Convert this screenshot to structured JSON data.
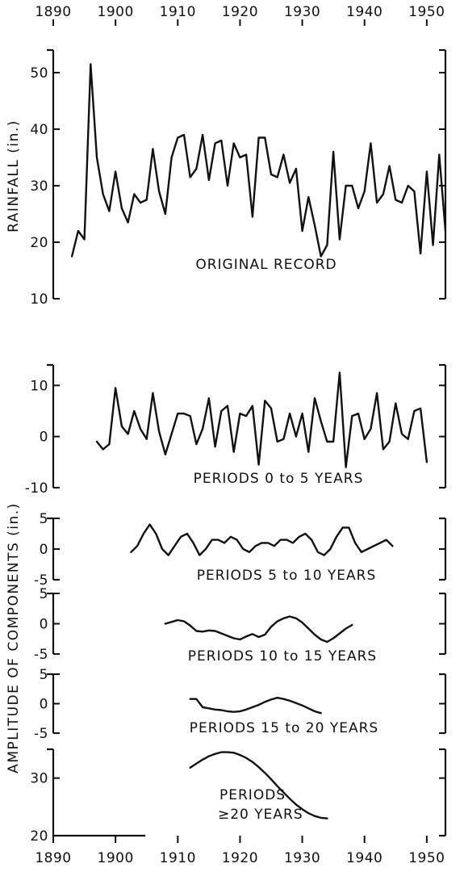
{
  "chart_data": {
    "type": "line",
    "x_ticks": [
      "1890",
      "1900",
      "1910",
      "1920",
      "1930",
      "1940",
      "1950"
    ],
    "x_ticks_top": [
      "1890",
      "1900",
      "1910",
      "1920",
      "1930",
      "1940",
      "1950"
    ],
    "xlim": [
      1890,
      1953
    ],
    "ylabel_top": "RAINFALL (in.)",
    "ylabel_bottom": "AMPLITUDE OF COMPONENTS (in.)",
    "panels": [
      {
        "label": "ORIGINAL RECORD",
        "ylim": [
          10,
          54
        ],
        "y_ticks": [
          "10",
          "20",
          "30",
          "40",
          "50"
        ],
        "y_tick_values": [
          10,
          20,
          30,
          40,
          50
        ],
        "x": [
          1893,
          1894,
          1895,
          1896,
          1897,
          1898,
          1899,
          1900,
          1901,
          1902,
          1903,
          1904,
          1905,
          1906,
          1907,
          1908,
          1909,
          1910,
          1911,
          1912,
          1913,
          1914,
          1915,
          1916,
          1917,
          1918,
          1919,
          1920,
          1921,
          1922,
          1923,
          1924,
          1925,
          1926,
          1927,
          1928,
          1929,
          1930,
          1931,
          1932,
          1933,
          1934,
          1935,
          1936,
          1937,
          1938,
          1939,
          1940,
          1941,
          1942,
          1943,
          1944,
          1945,
          1946,
          1947,
          1948,
          1949,
          1950,
          1951,
          1952,
          1953
        ],
        "values": [
          17.5,
          22.0,
          20.5,
          51.5,
          35.0,
          28.5,
          25.5,
          32.5,
          26.0,
          23.5,
          28.5,
          27.0,
          27.5,
          36.5,
          29.0,
          25.0,
          35.0,
          38.5,
          39.0,
          31.5,
          33.0,
          39.0,
          31.0,
          37.5,
          38.0,
          30.0,
          37.5,
          35.0,
          35.5,
          24.5,
          38.5,
          38.5,
          32.0,
          31.5,
          35.5,
          30.5,
          33.0,
          22.0,
          28.0,
          23.0,
          17.5,
          19.5,
          36.0,
          20.5,
          30.0,
          30.0,
          26.0,
          29.0,
          37.5,
          27.0,
          28.5,
          33.5,
          27.5,
          27.0,
          30.0,
          29.0,
          18.0,
          32.5,
          19.5,
          35.5,
          22.0
        ]
      },
      {
        "label": "PERIODS 0 to 5 YEARS",
        "ylim": [
          -10,
          14
        ],
        "y_ticks": [
          "10",
          "0",
          "-10"
        ],
        "y_tick_values": [
          10,
          0,
          -10
        ],
        "x": [
          1897,
          1898,
          1899,
          1900,
          1901,
          1902,
          1903,
          1904,
          1905,
          1906,
          1907,
          1908,
          1909,
          1910,
          1911,
          1912,
          1913,
          1914,
          1915,
          1916,
          1917,
          1918,
          1919,
          1920,
          1921,
          1922,
          1923,
          1924,
          1925,
          1926,
          1927,
          1928,
          1929,
          1930,
          1931,
          1932,
          1933,
          1934,
          1935,
          1936,
          1937,
          1938,
          1939,
          1940,
          1941,
          1942,
          1943,
          1944,
          1945,
          1946,
          1947,
          1948,
          1949,
          1950
        ],
        "values": [
          -1.0,
          -2.5,
          -1.5,
          9.5,
          2.0,
          0.5,
          5.0,
          1.5,
          -0.5,
          8.5,
          1.0,
          -3.5,
          0.5,
          4.5,
          4.5,
          4.0,
          -1.5,
          1.5,
          7.5,
          -2.0,
          5.0,
          6.0,
          -3.0,
          4.5,
          4.0,
          6.0,
          -5.5,
          7.0,
          5.5,
          -1.0,
          -0.5,
          4.5,
          0.0,
          4.5,
          -3.0,
          7.5,
          3.0,
          -1.0,
          -1.0,
          12.5,
          -6.0,
          4.0,
          4.5,
          -0.5,
          1.5,
          8.5,
          -2.5,
          -1.0,
          6.5,
          0.5,
          -0.5,
          5.0,
          5.5,
          -5.0
        ]
      },
      {
        "label": "PERIODS 5 to 10 YEARS",
        "ylim": [
          -5,
          5
        ],
        "y_ticks": [
          "5",
          "0",
          "-5"
        ],
        "y_tick_values": [
          5,
          0,
          -5
        ],
        "x": [
          1902.5,
          1903.5,
          1904.5,
          1905.5,
          1906.5,
          1907.5,
          1908.5,
          1909.5,
          1910.5,
          1911.5,
          1912.5,
          1913.5,
          1914.5,
          1915.5,
          1916.5,
          1917.5,
          1918.5,
          1919.5,
          1920.5,
          1921.5,
          1922.5,
          1923.5,
          1924.5,
          1925.5,
          1926.5,
          1927.5,
          1928.5,
          1929.5,
          1930.5,
          1931.5,
          1932.5,
          1933.5,
          1934.5,
          1935.5,
          1936.5,
          1937.5,
          1938.5,
          1939.5,
          1940.5,
          1941.5,
          1942.5,
          1943.5,
          1944.5
        ],
        "values": [
          -0.5,
          0.5,
          2.5,
          4.0,
          2.5,
          0.0,
          -1.0,
          0.5,
          2.0,
          2.5,
          1.0,
          -1.0,
          0.0,
          1.5,
          1.5,
          1.0,
          2.0,
          1.5,
          0.0,
          -0.5,
          0.5,
          1.0,
          1.0,
          0.5,
          1.5,
          1.5,
          1.0,
          2.0,
          2.5,
          1.5,
          -0.5,
          -1.0,
          0.0,
          2.0,
          3.5,
          3.5,
          1.0,
          -0.5,
          0.0,
          0.5,
          1.0,
          1.5,
          0.5
        ]
      },
      {
        "label": "PERIODS 10 to 15 YEARS",
        "ylim": [
          -5,
          5
        ],
        "y_ticks": [
          "5",
          "0",
          "-5"
        ],
        "y_tick_values": [
          5,
          0,
          -5
        ],
        "x": [
          1908,
          1909,
          1910,
          1911,
          1912,
          1913,
          1914,
          1915,
          1916,
          1917,
          1918,
          1919,
          1920,
          1921,
          1922,
          1923,
          1924,
          1925,
          1926,
          1927,
          1928,
          1929,
          1930,
          1931,
          1932,
          1933,
          1934,
          1935,
          1936,
          1937,
          1938
        ],
        "values": [
          0.0,
          0.3,
          0.6,
          0.4,
          -0.3,
          -1.2,
          -1.3,
          -1.1,
          -1.2,
          -1.6,
          -2.0,
          -2.4,
          -2.6,
          -2.1,
          -1.7,
          -2.2,
          -1.8,
          -0.5,
          0.4,
          0.9,
          1.2,
          0.9,
          0.2,
          -0.8,
          -1.8,
          -2.6,
          -3.0,
          -2.4,
          -1.6,
          -0.8,
          -0.2
        ]
      },
      {
        "label": "PERIODS 15 to 20 YEARS",
        "ylim": [
          -5,
          5
        ],
        "y_ticks": [
          "5",
          "0",
          "-5"
        ],
        "y_tick_values": [
          5,
          0,
          -5
        ],
        "x": [
          1912,
          1913,
          1914,
          1915,
          1916,
          1917,
          1918,
          1919,
          1920,
          1921,
          1922,
          1923,
          1924,
          1925,
          1926,
          1927,
          1928,
          1929,
          1930,
          1931,
          1932,
          1933
        ],
        "values": [
          0.8,
          0.8,
          -0.6,
          -0.8,
          -1.0,
          -1.1,
          -1.3,
          -1.4,
          -1.3,
          -1.0,
          -0.6,
          -0.2,
          0.3,
          0.7,
          1.0,
          0.8,
          0.5,
          0.1,
          -0.3,
          -0.8,
          -1.3,
          -1.6
        ]
      },
      {
        "label_lines": [
          "PERIODS",
          "≥20 YEARS"
        ],
        "ylim": [
          20,
          35
        ],
        "y_ticks": [
          "30",
          "20"
        ],
        "y_tick_values": [
          30,
          20
        ],
        "x": [
          1912,
          1913,
          1914,
          1915,
          1916,
          1917,
          1918,
          1919,
          1920,
          1921,
          1922,
          1923,
          1924,
          1925,
          1926,
          1927,
          1928,
          1929,
          1930,
          1931,
          1932,
          1933,
          1934
        ],
        "values": [
          31.8,
          32.5,
          33.2,
          33.8,
          34.2,
          34.5,
          34.5,
          34.4,
          34.0,
          33.5,
          32.8,
          31.9,
          30.9,
          29.8,
          28.6,
          27.5,
          26.4,
          25.4,
          24.6,
          23.9,
          23.4,
          23.1,
          23.0
        ]
      }
    ]
  }
}
